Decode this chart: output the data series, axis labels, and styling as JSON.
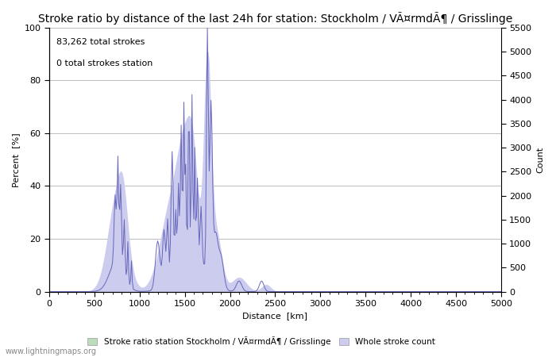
{
  "title": "Stroke ratio by distance of the last 24h for station: Stockholm / VÃ¤rmdÃ¶ / Grisslinge",
  "annotation_line1": "83,262 total strokes",
  "annotation_line2": "0 total strokes station",
  "xlabel": "Distance  [km]",
  "ylabel_left": "Percent  [%]",
  "ylabel_right": "Count",
  "xlim": [
    0,
    5000
  ],
  "ylim_left": [
    0,
    100
  ],
  "ylim_right": [
    0,
    5500
  ],
  "yticks_left": [
    0,
    20,
    40,
    60,
    80,
    100
  ],
  "yticks_right": [
    0,
    500,
    1000,
    1500,
    2000,
    2500,
    3000,
    3500,
    4000,
    4500,
    5000,
    5500
  ],
  "xticks": [
    0,
    500,
    1000,
    1500,
    2000,
    2500,
    3000,
    3500,
    4000,
    4500,
    5000
  ],
  "line_color": "#6666bb",
  "fill_color": "#ccccee",
  "station_fill_color": "#bbddbb",
  "background_color": "#ffffff",
  "grid_color": "#bbbbbb",
  "watermark": "www.lightningmaps.org",
  "legend_label_station": "Stroke ratio station Stockholm / VÃ¤rmdÃ¶ / Grisslinge",
  "legend_label_whole": "Whole stroke count",
  "title_fontsize": 10,
  "axis_fontsize": 8,
  "annotation_fontsize": 8
}
